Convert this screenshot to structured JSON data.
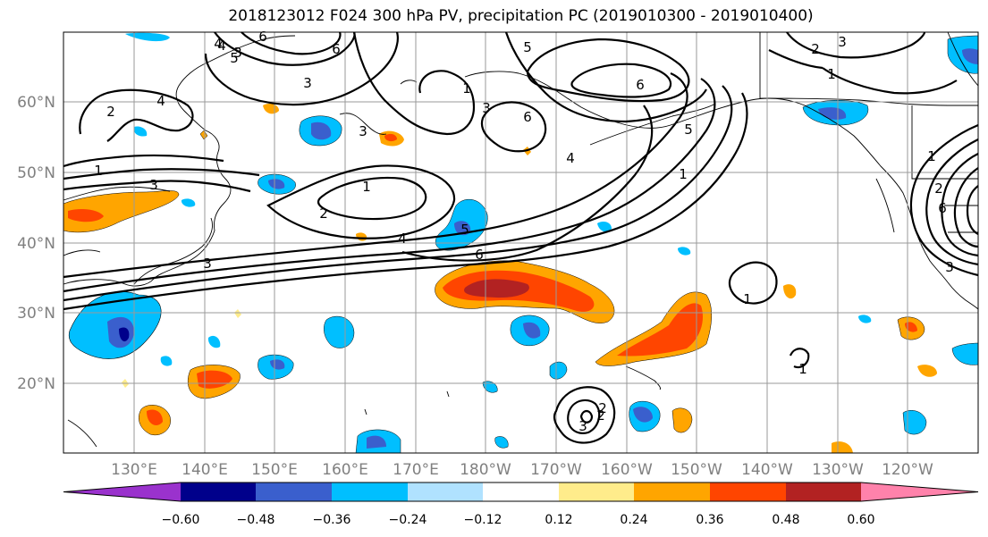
{
  "title": "2018123012 F024 300 hPa PV, precipitation PC (2019010300 - 2019010400)",
  "lat_labels": [
    "60°N",
    "50°N",
    "40°N",
    "30°N",
    "20°N"
  ],
  "lon_labels": [
    "130°E",
    "140°E",
    "150°E",
    "160°E",
    "170°E",
    "180°W",
    "170°W",
    "160°W",
    "150°W",
    "140°W",
    "130°W",
    "120°W"
  ],
  "colorbar": {
    "labels": [
      "−0.60",
      "−0.48",
      "−0.36",
      "−0.24",
      "−0.12",
      "0.12",
      "0.24",
      "0.36",
      "0.48",
      "0.60"
    ],
    "colors": [
      "#9a32cd",
      "#00008b",
      "#3a5fcd",
      "#00bfff",
      "#b0e2ff",
      "#ffffff",
      "#ffec8b",
      "#ffa500",
      "#ff4500",
      "#b22222",
      "#ff82ab"
    ]
  },
  "contour_labels": [
    "1",
    "2",
    "3",
    "4",
    "5",
    "6",
    "1",
    "3",
    "4",
    "6",
    "2",
    "1",
    "2",
    "3",
    "4",
    "5",
    "6",
    "2",
    "3",
    "6",
    "3",
    "1",
    "5",
    "1",
    "4",
    "1",
    "3",
    "6",
    "1",
    "6",
    "3",
    "2",
    "1",
    "2",
    "3",
    "5",
    "4",
    "3"
  ]
}
